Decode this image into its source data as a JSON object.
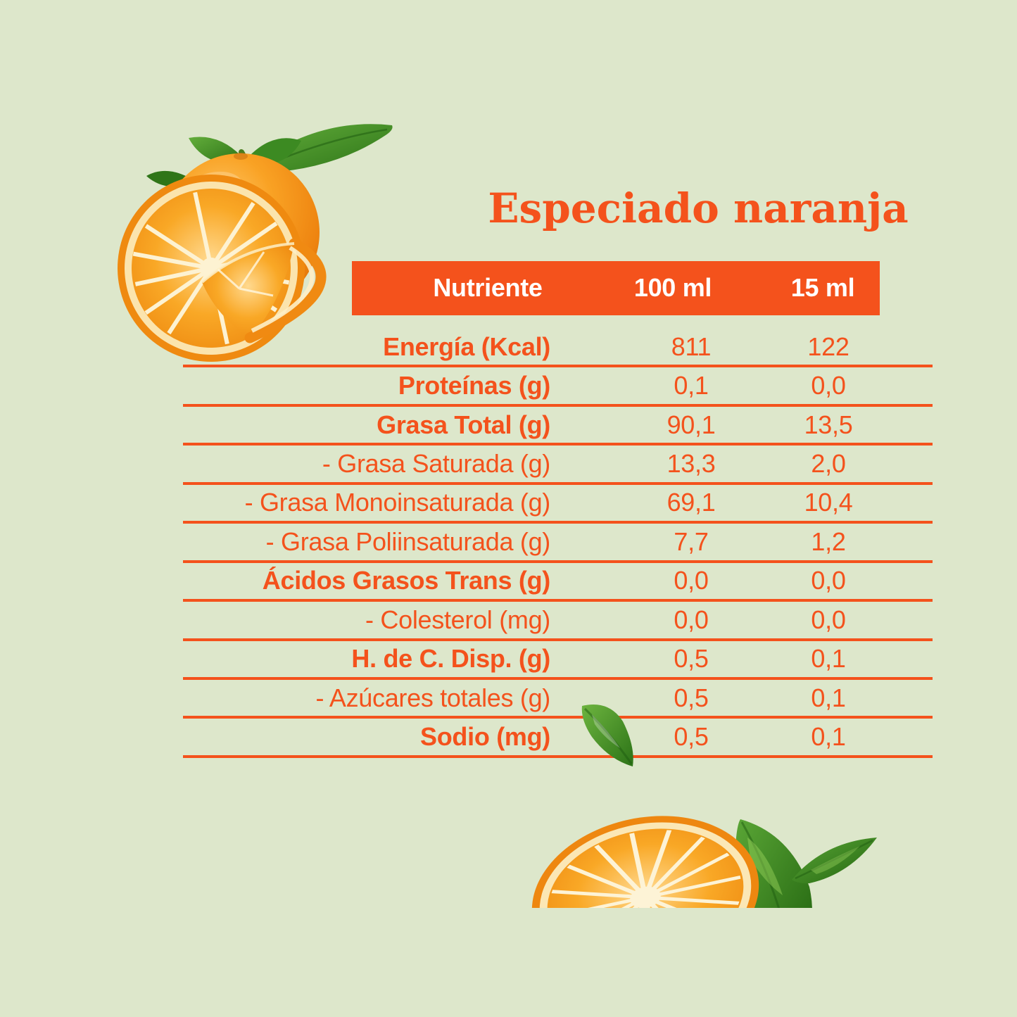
{
  "header": {
    "title": "Especiado naranja"
  },
  "colors": {
    "background": "#dde7cb",
    "accent": "#f4521c",
    "header_text": "#ffffff",
    "leaf_green": "#3f8c28",
    "orange_fruit": "#f69d1d"
  },
  "decorations": {
    "top_left": "oranges-with-leaves-photo",
    "middle": "falling-leaf",
    "bottom": "orange-half-with-leaves-photo"
  },
  "chart_data": {
    "type": "table",
    "title": "Especiado naranja",
    "columns": [
      "Nutriente",
      "100 ml",
      "15 ml"
    ],
    "rows": [
      {
        "label": "Energía (Kcal)",
        "v100": "811",
        "v15": "122",
        "bold": true
      },
      {
        "label": "Proteínas (g)",
        "v100": "0,1",
        "v15": "0,0",
        "bold": true
      },
      {
        "label": "Grasa Total (g)",
        "v100": "90,1",
        "v15": "13,5",
        "bold": true
      },
      {
        "label": "- Grasa Saturada (g)",
        "v100": "13,3",
        "v15": "2,0",
        "bold": false
      },
      {
        "label": "- Grasa Monoinsaturada (g)",
        "v100": "69,1",
        "v15": "10,4",
        "bold": false
      },
      {
        "label": "- Grasa Poliinsaturada (g)",
        "v100": "7,7",
        "v15": "1,2",
        "bold": false
      },
      {
        "label": "Ácidos Grasos Trans (g)",
        "v100": "0,0",
        "v15": "0,0",
        "bold": true
      },
      {
        "label": "- Colesterol (mg)",
        "v100": "0,0",
        "v15": "0,0",
        "bold": false
      },
      {
        "label": "H. de C. Disp. (g)",
        "v100": "0,5",
        "v15": "0,1",
        "bold": true
      },
      {
        "label": "- Azúcares totales (g)",
        "v100": "0,5",
        "v15": "0,1",
        "bold": false
      },
      {
        "label": "Sodio (mg)",
        "v100": "0,5",
        "v15": "0,1",
        "bold": true
      }
    ]
  }
}
